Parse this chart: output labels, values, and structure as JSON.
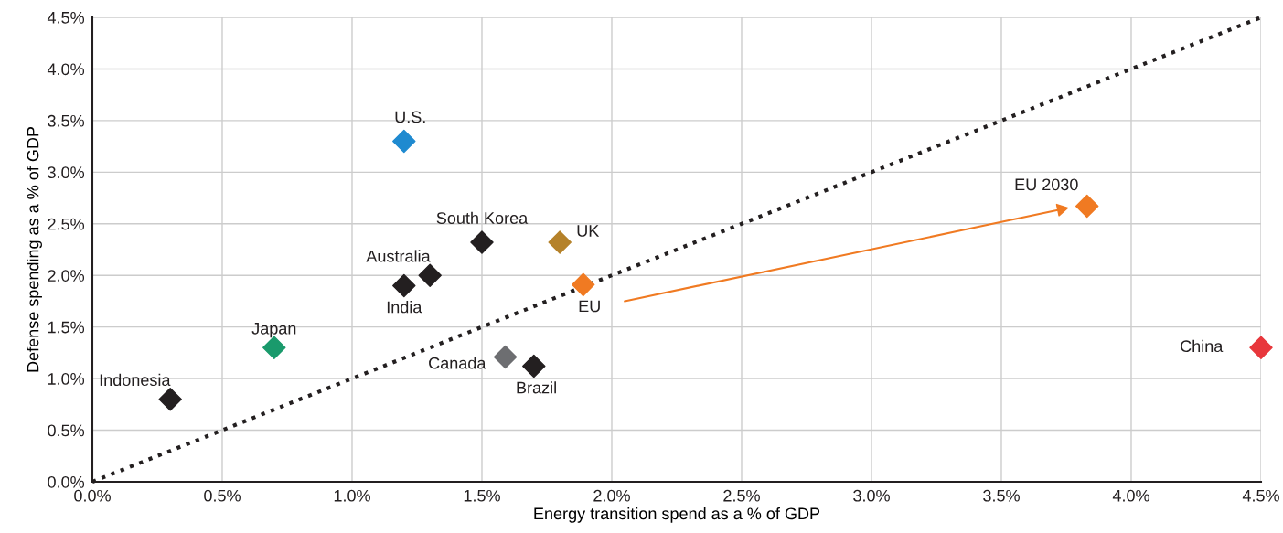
{
  "chart_data": {
    "type": "scatter",
    "xlabel": "Energy transition spend as a % of GDP",
    "ylabel": "Defense spending as a % of GDP",
    "marker": "diamond",
    "grid": true,
    "legend": false,
    "xlim": [
      0,
      4.5
    ],
    "ylim": [
      0,
      4.5
    ],
    "xticks": [
      {
        "value": 0,
        "label": "0.0%"
      },
      {
        "value": 0.5,
        "label": "0.5%"
      },
      {
        "value": 1,
        "label": "1.0%"
      },
      {
        "value": 1.5,
        "label": "1.5%"
      },
      {
        "value": 2,
        "label": "2.0%"
      },
      {
        "value": 2.5,
        "label": "2.5%"
      },
      {
        "value": 3,
        "label": "3.0%"
      },
      {
        "value": 3.5,
        "label": "3.5%"
      },
      {
        "value": 4,
        "label": "4.0%"
      },
      {
        "value": 4.5,
        "label": "4.5%"
      }
    ],
    "yticks": [
      {
        "value": 0,
        "label": "0.0%"
      },
      {
        "value": 0.5,
        "label": "0.5%"
      },
      {
        "value": 1,
        "label": "1.0%"
      },
      {
        "value": 1.5,
        "label": "1.5%"
      },
      {
        "value": 2,
        "label": "2.0%"
      },
      {
        "value": 2.5,
        "label": "2.5%"
      },
      {
        "value": 3,
        "label": "3.0%"
      },
      {
        "value": 3.5,
        "label": "3.5%"
      },
      {
        "value": 4,
        "label": "4.0%"
      },
      {
        "value": 4.5,
        "label": "4.5%"
      }
    ],
    "series": [
      {
        "type": "line",
        "x": [
          0,
          4.5
        ],
        "values": [
          0,
          4.5
        ],
        "color": "#231f20",
        "line_style": "dotted",
        "marker": "none"
      },
      {
        "name": "Indonesia",
        "x": [
          0.3
        ],
        "values": [
          0.8
        ],
        "color": "#231f20"
      },
      {
        "name": "Japan",
        "x": [
          0.7
        ],
        "values": [
          1.3
        ],
        "color": "#1a9a6c"
      },
      {
        "name": "U.S.",
        "x": [
          1.2
        ],
        "values": [
          3.3
        ],
        "color": "#1f8ad0"
      },
      {
        "name": "India",
        "x": [
          1.2
        ],
        "values": [
          1.9
        ],
        "color": "#231f20"
      },
      {
        "name": "Australia",
        "x": [
          1.3
        ],
        "values": [
          2.0
        ],
        "color": "#231f20"
      },
      {
        "name": "South Korea",
        "x": [
          1.5
        ],
        "values": [
          2.32
        ],
        "color": "#231f20"
      },
      {
        "name": "UK",
        "x": [
          1.8
        ],
        "values": [
          2.32
        ],
        "color": "#b5822a"
      },
      {
        "name": "EU",
        "x": [
          1.89
        ],
        "values": [
          1.91
        ],
        "color": "#f07a22"
      },
      {
        "name": "Canada",
        "x": [
          1.59
        ],
        "values": [
          1.21
        ],
        "color": "#6d6e71"
      },
      {
        "name": "Brazil",
        "x": [
          1.7
        ],
        "values": [
          1.12
        ],
        "color": "#231f20"
      },
      {
        "name": "EU 2030",
        "x": [
          3.83
        ],
        "values": [
          2.67
        ],
        "color": "#f07a22"
      },
      {
        "name": "China",
        "x": [
          4.5
        ],
        "values": [
          1.3
        ],
        "color": "#e8373c"
      },
      {
        "type": "line",
        "x": [
          2.05,
          3.73
        ],
        "values": [
          1.75,
          2.64
        ],
        "color": "#f07a22",
        "line_style": "solid",
        "marker": "triangle"
      }
    ]
  }
}
